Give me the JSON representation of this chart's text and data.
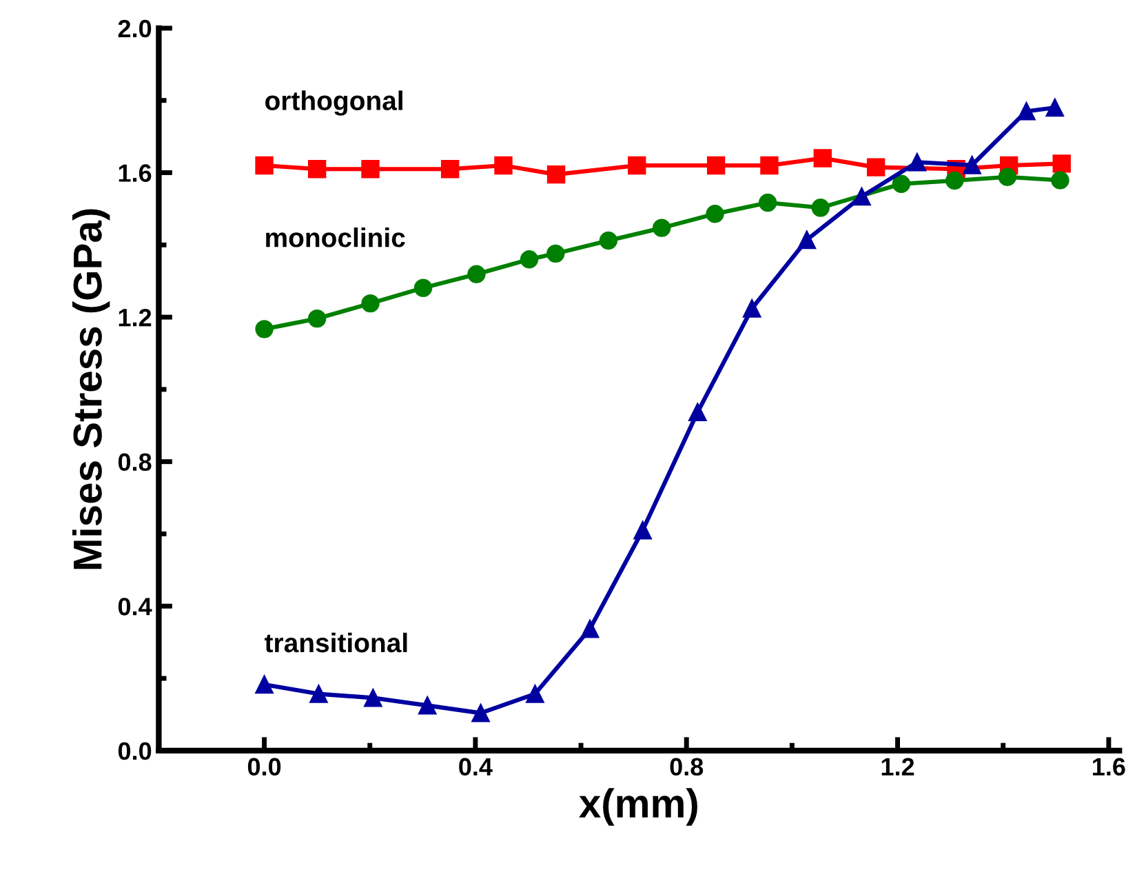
{
  "chart_data": {
    "type": "line",
    "xlabel": "x(mm)",
    "ylabel": "Mises Stress (GPa)",
    "xlim": [
      -0.2,
      1.62
    ],
    "ylim": [
      0,
      2.0
    ],
    "xticks": [
      {
        "value": 0,
        "label": "0.0"
      },
      0.4,
      0.8,
      1.2,
      1.6
    ],
    "yticks": [
      {
        "value": 0,
        "label": "0.0"
      },
      0.4,
      0.8,
      1.2,
      1.6,
      {
        "value": 2,
        "label": "2.0"
      }
    ],
    "grid": false,
    "legend": false,
    "line_style": "solid",
    "series": [
      {
        "name": "orthogonal",
        "color": "#ff0000",
        "marker": "square",
        "x": [
          0,
          0.1,
          0.201,
          0.352,
          0.453,
          0.553,
          0.706,
          0.856,
          0.957,
          1.058,
          1.159,
          1.311,
          1.411,
          1.511
        ],
        "values": [
          1.62,
          1.61,
          1.61,
          1.61,
          1.62,
          1.595,
          1.62,
          1.62,
          1.62,
          1.64,
          1.615,
          1.61,
          1.62,
          1.625
        ]
      },
      {
        "name": "monoclinic",
        "color": "#008000",
        "marker": "circle",
        "x": [
          0,
          0.1,
          0.201,
          0.301,
          0.402,
          0.502,
          0.552,
          0.652,
          0.753,
          0.854,
          0.954,
          1.054,
          1.207,
          1.308,
          1.408,
          1.508
        ],
        "values": [
          1.167,
          1.196,
          1.238,
          1.281,
          1.319,
          1.36,
          1.376,
          1.412,
          1.447,
          1.486,
          1.517,
          1.503,
          1.569,
          1.578,
          1.588,
          1.579
        ]
      },
      {
        "name": "transitional",
        "color": "#0000a0",
        "marker": "triangle",
        "x": [
          0,
          0.103,
          0.206,
          0.309,
          0.41,
          0.513,
          0.617,
          0.717,
          0.821,
          0.924,
          1.028,
          1.132,
          1.237,
          1.341,
          1.444,
          1.498
        ],
        "values": [
          0.183,
          0.157,
          0.146,
          0.125,
          0.104,
          0.157,
          0.337,
          0.61,
          0.937,
          1.224,
          1.414,
          1.534,
          1.629,
          1.621,
          1.77,
          1.78
        ]
      }
    ]
  }
}
